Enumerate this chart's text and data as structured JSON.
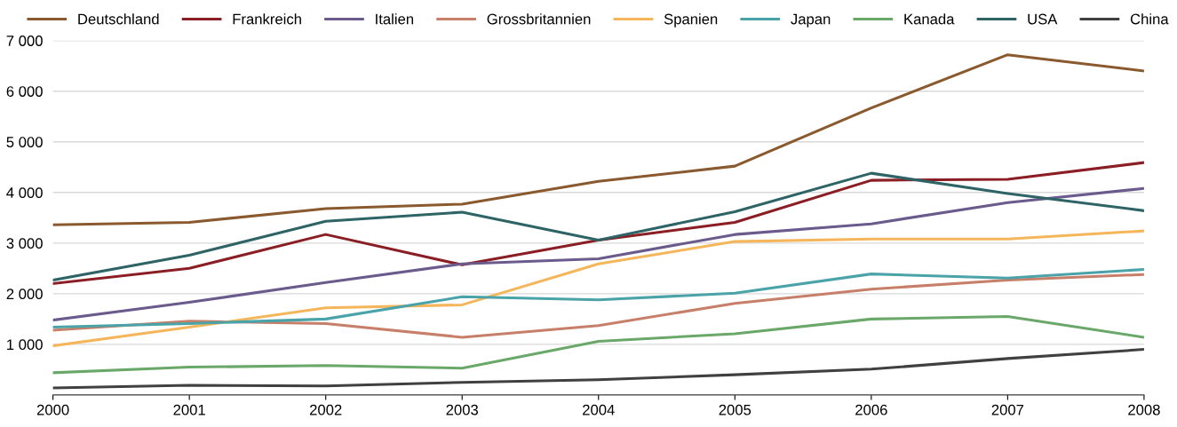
{
  "chart_data": {
    "type": "line",
    "x": [
      2000,
      2001,
      2002,
      2003,
      2004,
      2005,
      2006,
      2007,
      2008
    ],
    "xlim": [
      2000,
      2008
    ],
    "xticks": [
      2000,
      2001,
      2002,
      2003,
      2004,
      2005,
      2006,
      2007,
      2008
    ],
    "ylim": [
      0,
      7000
    ],
    "yticks": [
      {
        "value": 0,
        "label": null
      },
      {
        "value": 1000,
        "label": "1 000"
      },
      {
        "value": 2000,
        "label": "2 000"
      },
      {
        "value": 3000,
        "label": "3 000"
      },
      {
        "value": 4000,
        "label": "4 000"
      },
      {
        "value": 5000,
        "label": "5 000"
      },
      {
        "value": 6000,
        "label": "6 000"
      },
      {
        "value": 7000,
        "label": "7 000"
      }
    ],
    "grid": "y",
    "legend": "top",
    "marker": "none",
    "line_style": "solid",
    "series": [
      {
        "name": "Deutschland",
        "color": "#8a5a2e",
        "values": [
          3360,
          3410,
          3680,
          3770,
          4220,
          4520,
          5670,
          6720,
          6400
        ]
      },
      {
        "name": "Frankreich",
        "color": "#8b1e24",
        "values": [
          2200,
          2500,
          3170,
          2570,
          3060,
          3410,
          4240,
          4260,
          4590
        ]
      },
      {
        "name": "Italien",
        "color": "#6a5b8c",
        "values": [
          1480,
          1830,
          2220,
          2590,
          2690,
          3170,
          3380,
          3800,
          4080
        ]
      },
      {
        "name": "Grossbritannien",
        "color": "#c87f6a",
        "values": [
          1280,
          1460,
          1410,
          1140,
          1370,
          1810,
          2090,
          2270,
          2380
        ]
      },
      {
        "name": "Spanien",
        "color": "#f5b65b",
        "values": [
          970,
          1340,
          1720,
          1780,
          2590,
          3030,
          3080,
          3080,
          3240
        ]
      },
      {
        "name": "Japan",
        "color": "#4aa3a8",
        "values": [
          1340,
          1410,
          1500,
          1940,
          1880,
          2010,
          2390,
          2310,
          2480
        ]
      },
      {
        "name": "Kanada",
        "color": "#6aa86a",
        "values": [
          440,
          550,
          580,
          530,
          1060,
          1210,
          1500,
          1550,
          1140
        ]
      },
      {
        "name": "USA",
        "color": "#2e6466",
        "values": [
          2270,
          2760,
          3430,
          3610,
          3060,
          3620,
          4380,
          3980,
          3640
        ]
      },
      {
        "name": "China",
        "color": "#404040",
        "values": [
          140,
          190,
          180,
          250,
          300,
          400,
          510,
          720,
          900
        ]
      }
    ]
  }
}
